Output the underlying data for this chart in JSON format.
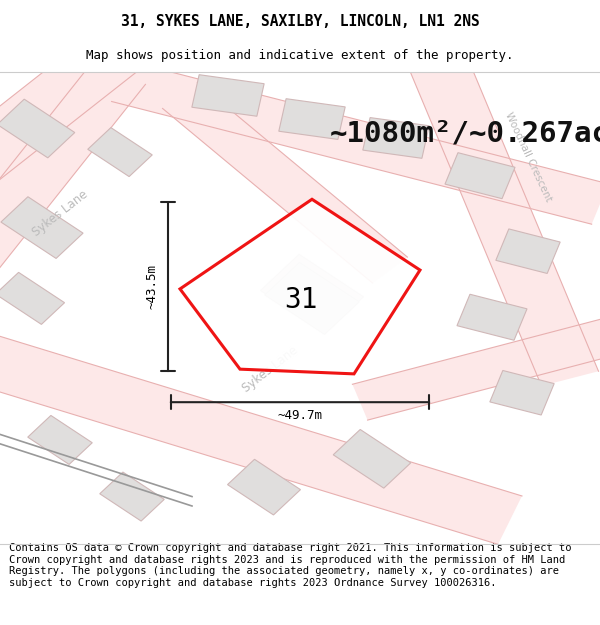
{
  "title": "31, SYKES LANE, SAXILBY, LINCOLN, LN1 2NS",
  "subtitle": "Map shows position and indicative extent of the property.",
  "area_label": "~1080m²/~0.267ac.",
  "number_label": "31",
  "dim_vertical": "~43.5m",
  "dim_horizontal": "~49.7m",
  "road_label_sykes_topleft": "Sykes Lane",
  "road_label_sykes_mid": "Sykes Lane",
  "road_label_woodhall": "Woodhall Crescent",
  "footer": "Contains OS data © Crown copyright and database right 2021. This information is subject to Crown copyright and database rights 2023 and is reproduced with the permission of HM Land Registry. The polygons (including the associated geometry, namely x, y co-ordinates) are subject to Crown copyright and database rights 2023 Ordnance Survey 100026316.",
  "bg_color": "#ffffff",
  "map_bg": "#f7f6f4",
  "road_fill": "#fde8e8",
  "road_edge": "#e8b0b0",
  "building_fill": "#e0dedd",
  "building_edge": "#d0b8b8",
  "red_polygon_color": "#ee0000",
  "dim_line_color": "#222222",
  "railway_color": "#999999",
  "title_fontsize": 10.5,
  "subtitle_fontsize": 9,
  "area_fontsize": 21,
  "number_fontsize": 20,
  "dim_fontsize": 9,
  "road_label_fontsize": 8.5,
  "footer_fontsize": 7.5
}
